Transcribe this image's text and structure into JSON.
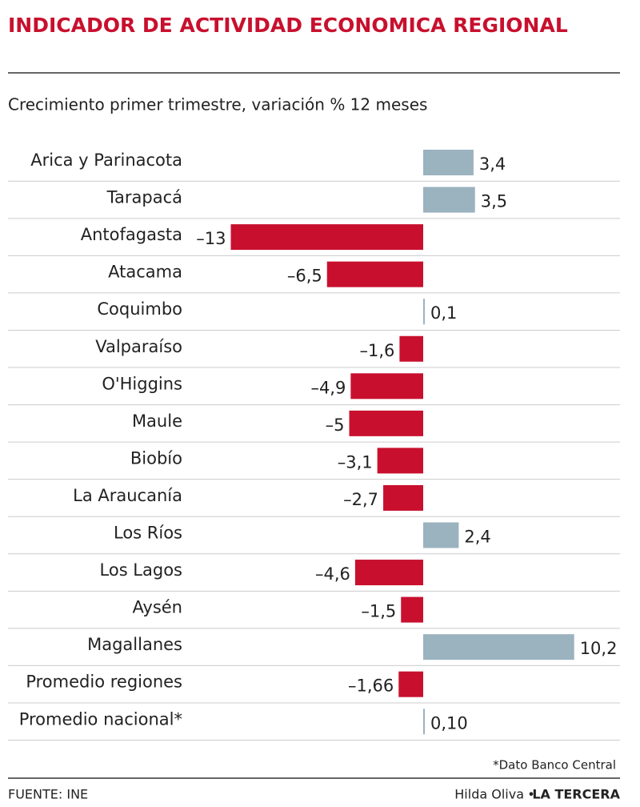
{
  "chart_data": {
    "type": "bar",
    "orientation": "horizontal",
    "title": "INDICADOR DE ACTIVIDAD ECONOMICA REGIONAL",
    "subtitle": "Crecimiento primer trimestre, variación % 12 meses",
    "categories": [
      "Arica y Parinacota",
      "Tarapacá",
      "Antofagasta",
      "Atacama",
      "Coquimbo",
      "Valparaíso",
      "O'Higgins",
      "Maule",
      "Biobío",
      "La Araucanía",
      "Los Ríos",
      "Los Lagos",
      "Aysén",
      "Magallanes",
      "Promedio regiones",
      "Promedio nacional*"
    ],
    "values": [
      3.4,
      3.5,
      -13,
      -6.5,
      0.1,
      -1.6,
      -4.9,
      -5,
      -3.1,
      -2.7,
      2.4,
      -4.6,
      -1.5,
      10.2,
      -1.66,
      0.1
    ],
    "value_labels": [
      "3,4",
      "3,5",
      "–13",
      "–6,5",
      "0,1",
      "–1,6",
      "–4,9",
      "–5",
      "–3,1",
      "–2,7",
      "2,4",
      "–4,6",
      "–1,5",
      "10,2",
      "–1,66",
      "0,10"
    ],
    "colors": [
      "#9bb2bf",
      "#9bb2bf",
      "#c8102e",
      "#c8102e",
      "#9bb2bf",
      "#c8102e",
      "#c8102e",
      "#c8102e",
      "#c8102e",
      "#c8102e",
      "#9bb2bf",
      "#c8102e",
      "#c8102e",
      "#9bb2bf",
      "#c8102e",
      "#9bb2bf"
    ],
    "footnote": "*Dato Banco Central",
    "source": "FUENTE:  INE",
    "author": "Hilda Oliva",
    "publisher": "LA TERCERA"
  }
}
